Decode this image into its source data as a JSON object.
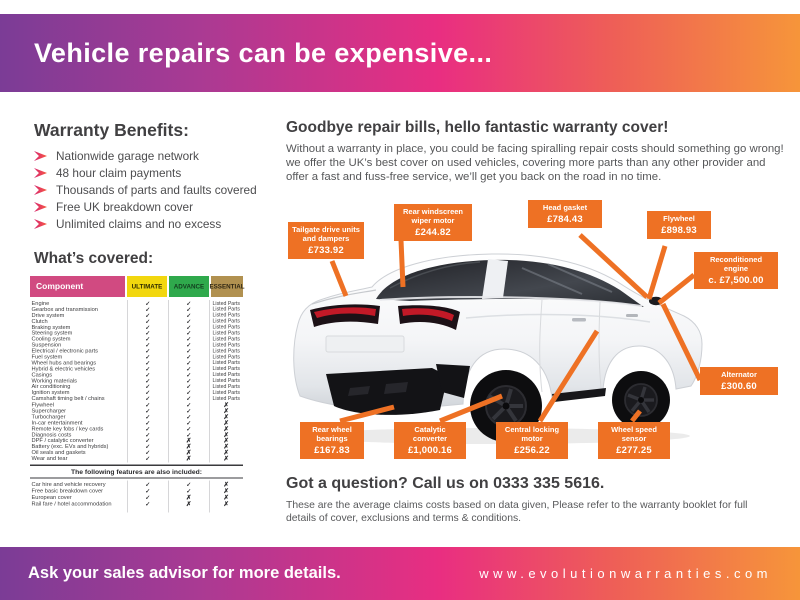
{
  "banner": {
    "title": "Vehicle repairs can be expensive..."
  },
  "benefits": {
    "title": "Warranty Benefits:",
    "items": [
      "Nationwide garage network",
      "48 hour claim payments",
      "Thousands of parts and faults covered",
      "Free UK breakdown cover",
      "Unlimited claims and no excess"
    ]
  },
  "covered": {
    "title": "What’s covered:",
    "headers": [
      "Component",
      "ULTIMATE",
      "ADVANCE",
      "ESSENTIAL"
    ],
    "listed_label": "Listed Parts",
    "rows": [
      {
        "name": "Engine",
        "cells": [
          "check",
          "check",
          "listed"
        ]
      },
      {
        "name": "Gearbox and transmission",
        "cells": [
          "check",
          "check",
          "listed"
        ]
      },
      {
        "name": "Drive system",
        "cells": [
          "check",
          "check",
          "listed"
        ]
      },
      {
        "name": "Clutch",
        "cells": [
          "check",
          "check",
          "listed"
        ]
      },
      {
        "name": "Braking system",
        "cells": [
          "check",
          "check",
          "listed"
        ]
      },
      {
        "name": "Steering system",
        "cells": [
          "check",
          "check",
          "listed"
        ]
      },
      {
        "name": "Cooling system",
        "cells": [
          "check",
          "check",
          "listed"
        ]
      },
      {
        "name": "Suspension",
        "cells": [
          "check",
          "check",
          "listed"
        ]
      },
      {
        "name": "Electrical / electronic parts",
        "cells": [
          "check",
          "check",
          "listed"
        ]
      },
      {
        "name": "Fuel system",
        "cells": [
          "check",
          "check",
          "listed"
        ]
      },
      {
        "name": "Wheel hubs and bearings",
        "cells": [
          "check",
          "check",
          "listed"
        ]
      },
      {
        "name": "Hybrid & electric vehicles",
        "cells": [
          "check",
          "check",
          "listed"
        ]
      },
      {
        "name": "Casings",
        "cells": [
          "check",
          "check",
          "listed"
        ]
      },
      {
        "name": "Working materials",
        "cells": [
          "check",
          "check",
          "listed"
        ]
      },
      {
        "name": "Air conditioning",
        "cells": [
          "check",
          "check",
          "listed"
        ]
      },
      {
        "name": "Ignition system",
        "cells": [
          "check",
          "check",
          "listed"
        ]
      },
      {
        "name": "Camshaft timing belt / chains",
        "cells": [
          "check",
          "check",
          "listed"
        ]
      },
      {
        "name": "Flywheel",
        "cells": [
          "check",
          "check",
          "cross"
        ]
      },
      {
        "name": "Supercharger",
        "cells": [
          "check",
          "check",
          "cross"
        ]
      },
      {
        "name": "Turbocharger",
        "cells": [
          "check",
          "check",
          "cross"
        ]
      },
      {
        "name": "In-car entertainment",
        "cells": [
          "check",
          "check",
          "cross"
        ]
      },
      {
        "name": "Remote key fobs / key cards",
        "cells": [
          "check",
          "check",
          "cross"
        ]
      },
      {
        "name": "Diagnosis costs",
        "cells": [
          "check",
          "check",
          "cross"
        ]
      },
      {
        "name": "DPF / catalytic converter",
        "cells": [
          "check",
          "cross",
          "cross"
        ]
      },
      {
        "name": "Battery (exc. EVs and hybrids)",
        "cells": [
          "check",
          "cross",
          "cross"
        ]
      },
      {
        "name": "Oil seals and gaskets",
        "cells": [
          "check",
          "cross",
          "cross"
        ]
      },
      {
        "name": "Wear and tear",
        "cells": [
          "check",
          "cross",
          "cross"
        ]
      }
    ],
    "features_title": "The following features are also included:",
    "features": [
      {
        "name": "Car hire and vehicle recovery",
        "cells": [
          "check",
          "check",
          "cross"
        ]
      },
      {
        "name": "Free basic breakdown cover",
        "cells": [
          "check",
          "check",
          "cross"
        ]
      },
      {
        "name": "European cover",
        "cells": [
          "check",
          "cross",
          "cross"
        ]
      },
      {
        "name": "Rail fare / hotel accommodation",
        "cells": [
          "check",
          "cross",
          "cross"
        ]
      }
    ]
  },
  "intro": {
    "title": "Goodbye repair bills, hello fantastic warranty cover!",
    "body": "Without a warranty in place, you could be facing spiralling repair costs should something go wrong! we offer the UK’s best cover on used vehicles, covering more parts than any other provider and offer a fast and fuss-free service, we’ll get you back on the road in no time."
  },
  "callouts": [
    {
      "label": "Tailgate drive units and dampers",
      "price": "£733.92"
    },
    {
      "label": "Rear windscreen wiper motor",
      "price": "£244.82"
    },
    {
      "label": "Head gasket",
      "price": "£784.43"
    },
    {
      "label": "Flywheel",
      "price": "£898.93"
    },
    {
      "label": "Reconditioned engine",
      "price": "c. £7,500.00"
    },
    {
      "label": "Rear wheel bearings",
      "price": "£167.83"
    },
    {
      "label": "Catalytic converter",
      "price": "£1,000.16"
    },
    {
      "label": "Central locking motor",
      "price": "£256.22"
    },
    {
      "label": "Wheel speed sensor",
      "price": "£277.25"
    },
    {
      "label": "Alternator",
      "price": "£300.60"
    }
  ],
  "contact": {
    "title": "Got a question? Call us on 0333 335 5616.",
    "note": "These are the average claims costs based on data given, Please refer to the warranty booklet for full details of cover, exclusions and terms & conditions."
  },
  "footer": {
    "left": "Ask your sales advisor for more details.",
    "right": "www.evolutionwarranties.com"
  },
  "colors": {
    "gradient_purple": "#7b3c96",
    "gradient_pink": "#e92e81",
    "gradient_orange": "#f6953a",
    "callout_orange": "#ee7124",
    "bullet_pink": "#d6246c",
    "header_component": "#d14a81",
    "header_ultimate": "#f2d70e",
    "header_advance": "#2fa94c",
    "header_essential": "#b19150",
    "text_dark": "#414042"
  }
}
